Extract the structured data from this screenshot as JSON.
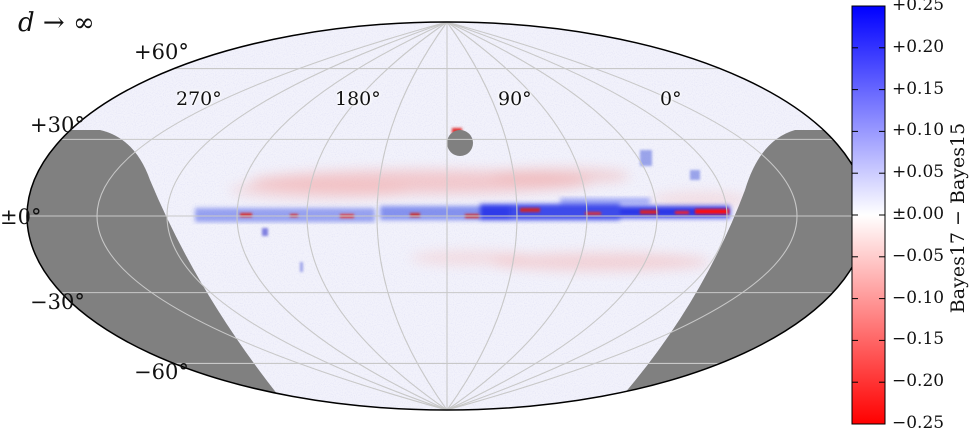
{
  "title": "d → ∞",
  "colors": {
    "masked": "#808080",
    "positive": "#0000ff",
    "neutral": "#ffffff",
    "negative": "#ff0000",
    "grid": "#c8c8c8"
  },
  "map": {
    "projection": "mollweide",
    "lat_labels": [
      "+60°",
      "+30°",
      "±0°",
      "−30°",
      "−60°"
    ],
    "lon_labels": [
      "270°",
      "180°",
      "90°",
      "0°"
    ]
  },
  "colorbar": {
    "label": "Bayes17 − Bayes15",
    "min": -0.25,
    "max": 0.25,
    "tick_labels": [
      "+0.25",
      "+0.20",
      "+0.15",
      "+0.10",
      "+0.05",
      "±0.00",
      "−0.05",
      "−0.10",
      "−0.15",
      "−0.20",
      "−0.25"
    ]
  }
}
